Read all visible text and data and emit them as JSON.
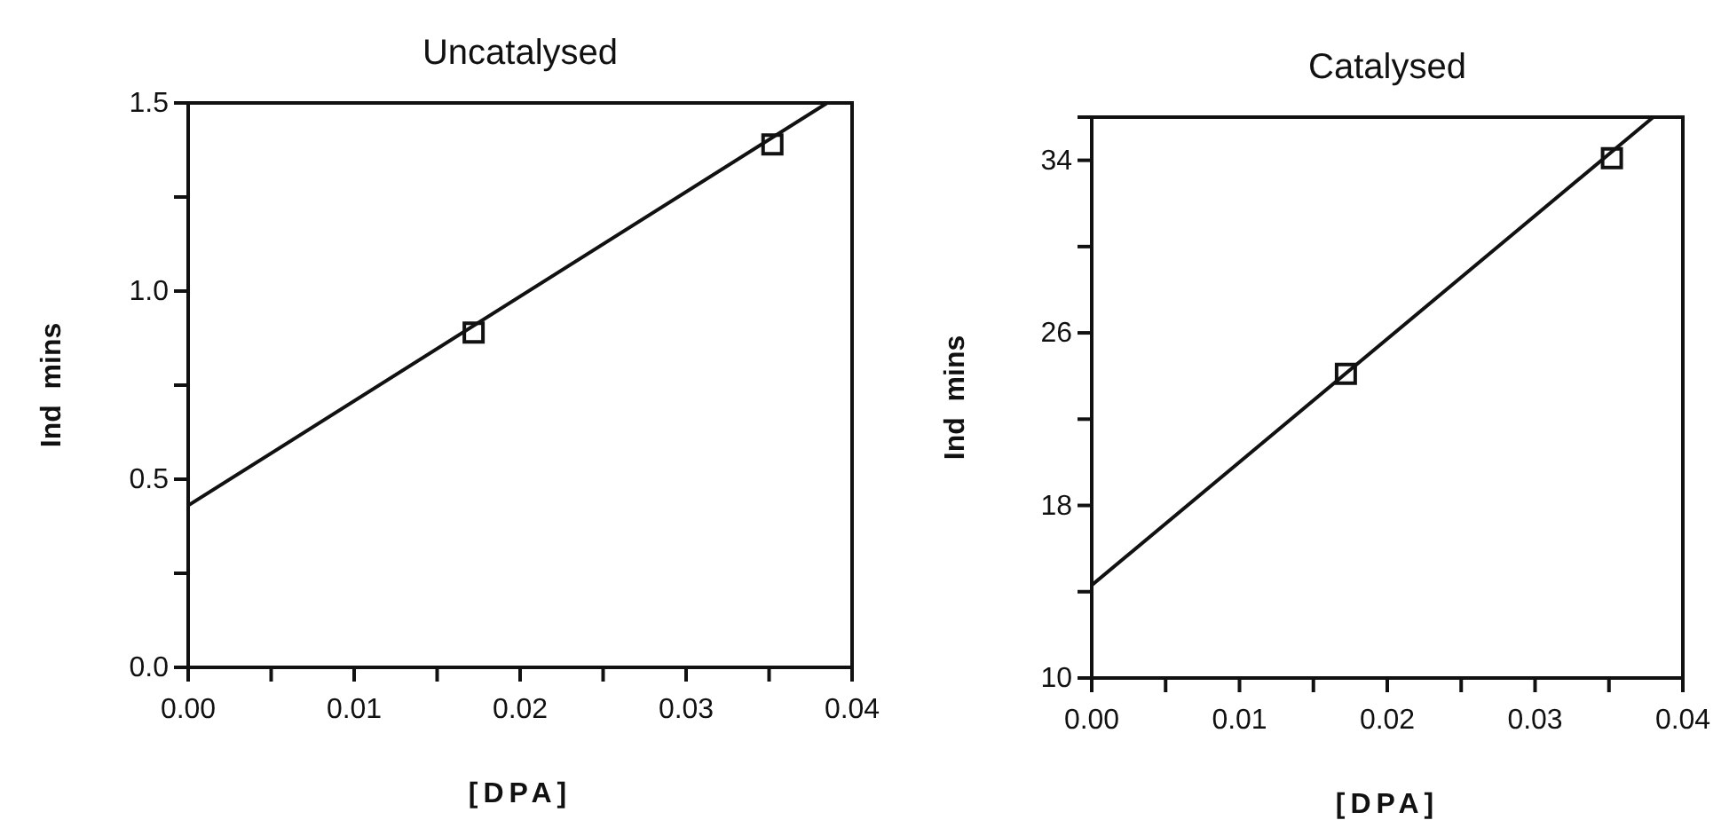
{
  "chart_data": [
    {
      "type": "scatter",
      "title": "Uncatalysed",
      "xlabel": "[DPA]",
      "ylabel": "Ind  mins",
      "xlim": [
        0,
        0.04
      ],
      "xticks": [
        "0.00",
        {
          "value": 0.005,
          "label": null
        },
        {
          "value": 0.01,
          "label": "0.01"
        },
        {
          "value": 0.015,
          "label": null
        },
        {
          "value": 0.02,
          "label": "0.02"
        },
        {
          "value": 0.025,
          "label": null
        },
        {
          "value": 0.03,
          "label": "0.03"
        },
        {
          "value": 0.035,
          "label": null
        },
        {
          "value": 0.04,
          "label": "0.04"
        }
      ],
      "ylim": [
        0,
        1.5
      ],
      "yticks": [
        {
          "value": 0,
          "label": "0.0"
        },
        {
          "value": 0.25,
          "label": null
        },
        {
          "value": 0.5,
          "label": "0.5"
        },
        {
          "value": 0.75,
          "label": null
        },
        {
          "value": 1,
          "label": "1.0"
        },
        {
          "value": 1.25,
          "label": null
        },
        {
          "value": 1.5,
          "label": "1.5"
        }
      ],
      "grid": false,
      "series": [
        {
          "marker": "square",
          "color": "#111111",
          "x": [
            0.0172,
            0.0352
          ],
          "values": [
            0.89,
            1.39
          ]
        },
        {
          "type": "line",
          "marker": "none",
          "color": "#111111",
          "x": [
            0,
            0.0385
          ],
          "values": [
            0.43,
            1.5
          ]
        }
      ]
    },
    {
      "type": "scatter",
      "title": "Catalysed",
      "xlabel": "[DPA]",
      "ylabel": "Ind  mins",
      "xlim": [
        0,
        0.04
      ],
      "xticks": [
        {
          "value": 0,
          "label": "0.00"
        },
        {
          "value": 0.005,
          "label": null
        },
        {
          "value": 0.01,
          "label": "0.01"
        },
        {
          "value": 0.015,
          "label": null
        },
        {
          "value": 0.02,
          "label": "0.02"
        },
        {
          "value": 0.025,
          "label": null
        },
        {
          "value": 0.03,
          "label": "0.03"
        },
        {
          "value": 0.035,
          "label": null
        },
        {
          "value": 0.04,
          "label": "0.04"
        }
      ],
      "ylim": [
        10,
        36
      ],
      "yticks": [
        10,
        {
          "value": 14,
          "label": null
        },
        18,
        {
          "value": 22,
          "label": null
        },
        26,
        {
          "value": 30,
          "label": null
        },
        34
      ],
      "grid": false,
      "series": [
        {
          "marker": "square",
          "color": "#111111",
          "x": [
            0.0172,
            0.0352
          ],
          "values": [
            24.1,
            34.1
          ]
        },
        {
          "type": "line",
          "marker": "none",
          "color": "#111111",
          "x": [
            0,
            0.038
          ],
          "values": [
            14.3,
            36
          ]
        }
      ]
    }
  ]
}
